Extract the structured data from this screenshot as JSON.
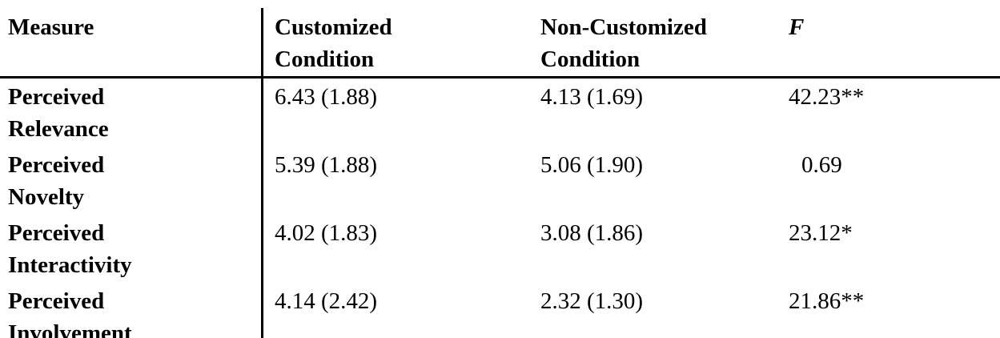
{
  "table": {
    "header": [
      "Measure",
      "Customized Condition",
      "Non-Customized Condition",
      "F"
    ],
    "rows": [
      [
        "Perceived Relevance",
        "6.43 (1.88)",
        "4.13 (1.69)",
        "42.23**"
      ],
      [
        "Perceived Novelty",
        "5.39 (1.88)",
        "5.06 (1.90)",
        "0.69"
      ],
      [
        "Perceived Interactivity",
        "4.02 (1.83)",
        "3.08 (1.86)",
        "23.12*"
      ],
      [
        "Perceived Involvement",
        "4.14 (2.42)",
        "2.32 (1.30)",
        "21.86**"
      ]
    ]
  }
}
